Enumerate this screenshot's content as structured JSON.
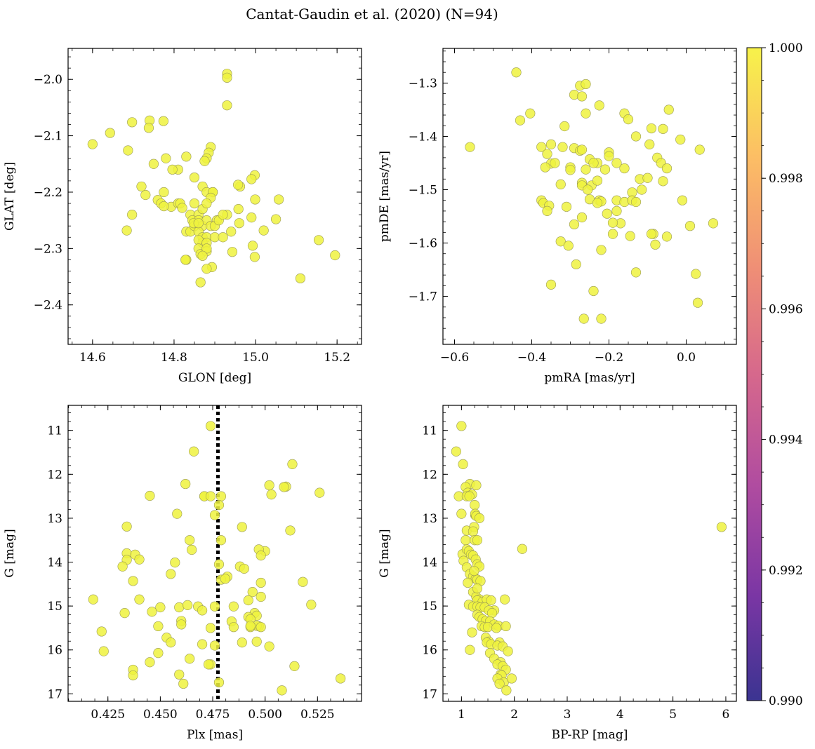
{
  "figure": {
    "title": "Cantat-Gaudin et al. (2020) (N=94)"
  },
  "chart_data": [
    {
      "type": "scatter",
      "panel": "top-left",
      "xlabel": "GLON [deg]",
      "ylabel": "GLAT [deg]",
      "xlim": [
        14.54,
        15.26
      ],
      "ylim": [
        -2.47,
        -1.945
      ],
      "xticks": [
        14.6,
        14.8,
        15.0,
        15.2
      ],
      "xtick_labels": [
        "14.6",
        "14.8",
        "15.0",
        "15.2"
      ],
      "yticks": [
        -2.0,
        -2.1,
        -2.2,
        -2.3,
        -2.4
      ],
      "ytick_labels": [
        "−2.0",
        "−2.1",
        "−2.2",
        "−2.3",
        "−2.4"
      ],
      "y_inverted": false,
      "x": [
        14.93,
        14.93,
        14.93,
        14.6,
        14.643,
        14.697,
        14.74,
        14.738,
        14.774,
        14.687,
        14.75,
        14.78,
        14.83,
        14.81,
        14.89,
        14.885,
        14.88,
        14.875,
        14.796,
        14.85,
        14.998,
        14.99,
        14.962,
        14.957,
        14.87,
        14.88,
        14.895,
        14.895,
        14.89,
        14.76,
        14.768,
        14.793,
        14.81,
        14.815,
        14.82,
        14.85,
        14.84,
        14.86,
        14.87,
        14.88,
        14.905,
        14.93,
        14.958,
        14.999,
        15.057,
        14.845,
        14.85,
        14.86,
        14.87,
        14.88,
        14.89,
        14.9,
        14.91,
        14.92,
        14.96,
        15.05,
        14.83,
        14.84,
        14.85,
        14.86,
        14.87,
        14.88,
        14.87,
        14.86,
        14.86,
        14.88,
        14.9,
        14.92,
        14.94,
        14.99,
        15.02,
        14.684,
        14.697,
        14.775,
        14.775,
        14.73,
        14.72,
        14.848,
        14.86,
        14.865,
        14.83,
        14.828,
        14.88,
        14.893,
        14.943,
        14.993,
        14.998,
        14.88,
        14.87,
        14.88,
        15.11,
        15.155,
        15.195,
        14.865
      ],
      "y": [
        -1.99,
        -1.997,
        -2.046,
        -2.115,
        -2.095,
        -2.076,
        -2.073,
        -2.086,
        -2.074,
        -2.126,
        -2.15,
        -2.14,
        -2.137,
        -2.16,
        -2.12,
        -2.13,
        -2.14,
        -2.145,
        -2.16,
        -2.174,
        -2.17,
        -2.177,
        -2.19,
        -2.187,
        -2.19,
        -2.2,
        -2.2,
        -2.2,
        -2.21,
        -2.214,
        -2.22,
        -2.226,
        -2.22,
        -2.22,
        -2.228,
        -2.22,
        -2.24,
        -2.24,
        -2.23,
        -2.22,
        -2.25,
        -2.24,
        -2.23,
        -2.213,
        -2.213,
        -2.25,
        -2.26,
        -2.25,
        -2.26,
        -2.25,
        -2.26,
        -2.26,
        -2.25,
        -2.24,
        -2.255,
        -2.248,
        -2.27,
        -2.27,
        -2.26,
        -2.27,
        -2.28,
        -2.28,
        -2.29,
        -2.285,
        -2.3,
        -2.29,
        -2.28,
        -2.28,
        -2.27,
        -2.245,
        -2.268,
        -2.268,
        -2.24,
        -2.225,
        -2.2,
        -2.205,
        -2.19,
        -2.255,
        -2.255,
        -2.31,
        -2.32,
        -2.32,
        -2.305,
        -2.333,
        -2.306,
        -2.295,
        -2.315,
        -2.3,
        -2.313,
        -2.336,
        -2.353,
        -2.285,
        -2.312,
        -2.36
      ],
      "marker_color": "#eef23e",
      "marker_edge": "#9b9b55"
    },
    {
      "type": "scatter",
      "panel": "top-right",
      "xlabel": "pmRA [mas/yr]",
      "ylabel": "pmDE [mas/yr]",
      "xlim": [
        -0.63,
        0.13
      ],
      "ylim": [
        -1.79,
        -1.235
      ],
      "xticks": [
        -0.6,
        -0.4,
        -0.2,
        0.0
      ],
      "xtick_labels": [
        "−0.6",
        "−0.4",
        "−0.2",
        "0.0"
      ],
      "yticks": [
        -1.3,
        -1.4,
        -1.5,
        -1.6,
        -1.7
      ],
      "ytick_labels": [
        "−1.3",
        "−1.4",
        "−1.5",
        "−1.6",
        "−1.7"
      ],
      "y_inverted": false,
      "x": [
        -0.44,
        -0.275,
        -0.26,
        -0.29,
        -0.27,
        -0.404,
        -0.43,
        -0.225,
        -0.16,
        -0.26,
        -0.15,
        -0.045,
        -0.315,
        -0.09,
        -0.06,
        -0.56,
        -0.375,
        -0.36,
        -0.35,
        -0.29,
        -0.275,
        -0.27,
        -0.32,
        -0.2,
        -0.2,
        -0.13,
        -0.075,
        -0.095,
        -0.015,
        -0.23,
        -0.35,
        -0.365,
        -0.34,
        -0.3,
        -0.3,
        -0.26,
        -0.25,
        -0.24,
        -0.21,
        -0.18,
        -0.16,
        -0.065,
        -0.05,
        -0.27,
        -0.27,
        -0.245,
        -0.23,
        -0.12,
        -0.1,
        -0.115,
        -0.14,
        -0.18,
        -0.16,
        -0.14,
        -0.13,
        -0.06,
        -0.375,
        -0.37,
        -0.355,
        -0.31,
        -0.25,
        -0.225,
        -0.22,
        -0.205,
        -0.18,
        -0.17,
        -0.19,
        -0.27,
        -0.29,
        -0.325,
        -0.305,
        -0.22,
        -0.19,
        -0.145,
        -0.085,
        -0.08,
        -0.05,
        -0.01,
        0.01,
        0.07,
        -0.09,
        -0.35,
        -0.285,
        -0.13,
        -0.24,
        -0.265,
        -0.22,
        0.025,
        0.03,
        0.035,
        -0.255,
        -0.23,
        -0.325,
        -0.36
      ],
      "y": [
        -1.28,
        -1.305,
        -1.302,
        -1.322,
        -1.325,
        -1.357,
        -1.37,
        -1.342,
        -1.357,
        -1.357,
        -1.368,
        -1.35,
        -1.381,
        -1.385,
        -1.386,
        -1.42,
        -1.42,
        -1.433,
        -1.415,
        -1.422,
        -1.427,
        -1.425,
        -1.42,
        -1.43,
        -1.437,
        -1.4,
        -1.44,
        -1.415,
        -1.406,
        -1.45,
        -1.451,
        -1.458,
        -1.45,
        -1.458,
        -1.463,
        -1.462,
        -1.443,
        -1.45,
        -1.462,
        -1.45,
        -1.46,
        -1.45,
        -1.46,
        -1.487,
        -1.492,
        -1.492,
        -1.483,
        -1.48,
        -1.478,
        -1.5,
        -1.505,
        -1.52,
        -1.523,
        -1.52,
        -1.523,
        -1.484,
        -1.52,
        -1.525,
        -1.53,
        -1.532,
        -1.518,
        -1.52,
        -1.522,
        -1.545,
        -1.54,
        -1.563,
        -1.562,
        -1.552,
        -1.565,
        -1.597,
        -1.605,
        -1.613,
        -1.583,
        -1.587,
        -1.583,
        -1.603,
        -1.588,
        -1.52,
        -1.568,
        -1.563,
        -1.583,
        -1.678,
        -1.64,
        -1.655,
        -1.69,
        -1.742,
        -1.742,
        -1.658,
        -1.712,
        -1.425,
        -1.5,
        -1.525,
        -1.49,
        -1.54
      ],
      "marker_color": "#eef23e",
      "marker_edge": "#9b9b55"
    },
    {
      "type": "scatter",
      "panel": "bottom-left",
      "xlabel": "Plx [mas]",
      "ylabel": "G [mag]",
      "xlim": [
        0.406,
        0.546
      ],
      "ylim": [
        17.17,
        10.43
      ],
      "xticks": [
        0.425,
        0.45,
        0.475,
        0.5,
        0.525
      ],
      "xtick_labels": [
        "0.425",
        "0.450",
        "0.475",
        "0.500",
        "0.525"
      ],
      "yticks": [
        11,
        12,
        13,
        14,
        15,
        16,
        17
      ],
      "ytick_labels": [
        "11",
        "12",
        "13",
        "14",
        "15",
        "16",
        "17"
      ],
      "y_inverted": true,
      "vline": 0.4775,
      "vline_color": "#000000",
      "x": [
        0.474,
        0.466,
        0.513,
        0.526,
        0.51,
        0.509,
        0.502,
        0.503,
        0.462,
        0.445,
        0.471,
        0.471,
        0.479,
        0.476,
        0.458,
        0.489,
        0.512,
        0.434,
        0.434,
        0.434,
        0.438,
        0.432,
        0.44,
        0.464,
        0.479,
        0.482,
        0.5,
        0.497,
        0.498,
        0.457,
        0.478,
        0.488,
        0.49,
        0.498,
        0.518,
        0.455,
        0.494,
        0.437,
        0.44,
        0.418,
        0.498,
        0.492,
        0.495,
        0.433,
        0.45,
        0.446,
        0.459,
        0.468,
        0.463,
        0.46,
        0.47,
        0.476,
        0.485,
        0.492,
        0.496,
        0.522,
        0.484,
        0.493,
        0.497,
        0.496,
        0.493,
        0.485,
        0.449,
        0.46,
        0.47,
        0.493,
        0.498,
        0.453,
        0.455,
        0.476,
        0.474,
        0.474,
        0.478,
        0.489,
        0.496,
        0.502,
        0.514,
        0.437,
        0.437,
        0.445,
        0.422,
        0.423,
        0.449,
        0.464,
        0.473,
        0.459,
        0.461,
        0.508,
        0.536,
        0.479,
        0.474,
        0.478,
        0.481,
        0.465
      ],
      "y": [
        10.9,
        11.48,
        11.77,
        12.42,
        12.28,
        12.29,
        12.25,
        12.46,
        12.22,
        12.49,
        12.5,
        12.5,
        12.5,
        12.93,
        12.9,
        13.2,
        13.28,
        13.19,
        13.8,
        13.95,
        13.83,
        14.1,
        13.94,
        13.5,
        13.5,
        14.33,
        13.75,
        13.71,
        13.85,
        14.01,
        14.05,
        14.1,
        14.15,
        14.47,
        14.45,
        14.27,
        14.68,
        14.43,
        14.85,
        14.85,
        14.79,
        14.87,
        15.16,
        15.16,
        15.03,
        15.13,
        15.03,
        15.01,
        14.98,
        15.34,
        15.1,
        15.01,
        15.01,
        15.25,
        15.22,
        14.97,
        15.35,
        15.3,
        15.46,
        15.45,
        15.48,
        15.48,
        15.46,
        15.42,
        15.87,
        15.45,
        15.48,
        15.72,
        15.83,
        15.9,
        15.5,
        16.33,
        16.74,
        15.83,
        15.81,
        15.92,
        16.37,
        16.45,
        16.58,
        16.28,
        15.58,
        16.03,
        16.07,
        16.2,
        16.33,
        16.56,
        16.77,
        16.92,
        16.65,
        14.4,
        12.5,
        12.7,
        14.38,
        13.72
      ],
      "marker_color": "#eef23e",
      "marker_edge": "#9b9b55"
    },
    {
      "type": "scatter",
      "panel": "bottom-right",
      "xlabel": "BP-RP [mag]",
      "ylabel": "G [mag]",
      "xlim": [
        0.65,
        6.2
      ],
      "ylim": [
        17.17,
        10.43
      ],
      "xticks": [
        1,
        2,
        3,
        4,
        5,
        6
      ],
      "xtick_labels": [
        "1",
        "2",
        "3",
        "4",
        "5",
        "6"
      ],
      "yticks": [
        11,
        12,
        13,
        14,
        15,
        16,
        17
      ],
      "ytick_labels": [
        "11",
        "12",
        "13",
        "14",
        "15",
        "16",
        "17"
      ],
      "y_inverted": true,
      "x": [
        1.0,
        0.9,
        1.03,
        1.16,
        1.08,
        1.12,
        1.2,
        1.28,
        0.95,
        1.1,
        1.15,
        1.25,
        1.26,
        1.26,
        1.0,
        1.28,
        1.1,
        1.24,
        1.22,
        1.08,
        1.25,
        1.3,
        1.02,
        1.1,
        1.14,
        1.18,
        1.22,
        1.27,
        1.3,
        1.34,
        1.04,
        1.1,
        1.16,
        1.22,
        1.27,
        1.3,
        1.36,
        1.12,
        1.22,
        1.28,
        1.34,
        1.3,
        1.4,
        1.48,
        1.56,
        1.62,
        1.82,
        1.14,
        1.22,
        1.3,
        1.36,
        1.44,
        1.52,
        1.58,
        1.3,
        1.34,
        1.4,
        1.46,
        1.54,
        1.62,
        1.7,
        1.84,
        1.38,
        1.44,
        1.5,
        1.66,
        1.46,
        1.52,
        1.72,
        1.48,
        1.56,
        1.68,
        1.78,
        1.88,
        1.54,
        1.62,
        1.74,
        1.68,
        1.78,
        1.84,
        1.74,
        1.76,
        1.68,
        1.8,
        1.95,
        1.72,
        1.85,
        2.15,
        5.92,
        1.24,
        1.3,
        1.34,
        1.2,
        1.16
      ],
      "y": [
        10.9,
        11.48,
        11.77,
        12.22,
        12.29,
        12.42,
        12.46,
        12.25,
        12.5,
        12.5,
        12.5,
        12.7,
        12.93,
        12.9,
        12.9,
        12.95,
        13.28,
        13.2,
        13.3,
        13.5,
        13.5,
        13.5,
        13.82,
        13.71,
        13.75,
        13.83,
        13.85,
        13.94,
        14.05,
        14.1,
        13.97,
        14.12,
        14.27,
        14.33,
        14.38,
        14.4,
        14.43,
        14.47,
        14.68,
        14.79,
        14.85,
        14.87,
        14.9,
        14.85,
        14.87,
        15.1,
        14.85,
        14.97,
        15.01,
        15.01,
        15.03,
        15.03,
        15.1,
        15.16,
        15.2,
        15.25,
        15.3,
        15.34,
        15.35,
        15.42,
        15.45,
        15.46,
        15.46,
        15.48,
        15.48,
        15.5,
        15.72,
        15.81,
        15.83,
        15.83,
        15.87,
        15.9,
        15.92,
        16.03,
        16.07,
        16.2,
        16.28,
        16.33,
        16.37,
        16.45,
        16.56,
        16.58,
        16.65,
        16.74,
        16.65,
        16.77,
        16.92,
        13.7,
        13.2,
        14.2,
        14.6,
        13.0,
        15.6,
        16.0
      ],
      "marker_color": "#eef23e",
      "marker_edge": "#9b9b55"
    }
  ],
  "colorbar": {
    "vmin": 0.99,
    "vmax": 1.0,
    "tick_labels": [
      "1.000",
      "0.998",
      "0.996",
      "0.994",
      "0.992",
      "0.990"
    ],
    "tick_values": [
      1.0,
      0.998,
      0.996,
      0.994,
      0.992,
      0.99
    ],
    "colormap": "plasma",
    "stops": [
      "#3b3491",
      "#7a36a4",
      "#b04ca0",
      "#d6688c",
      "#ef8e76",
      "#fcbd65",
      "#f7f24a"
    ]
  }
}
